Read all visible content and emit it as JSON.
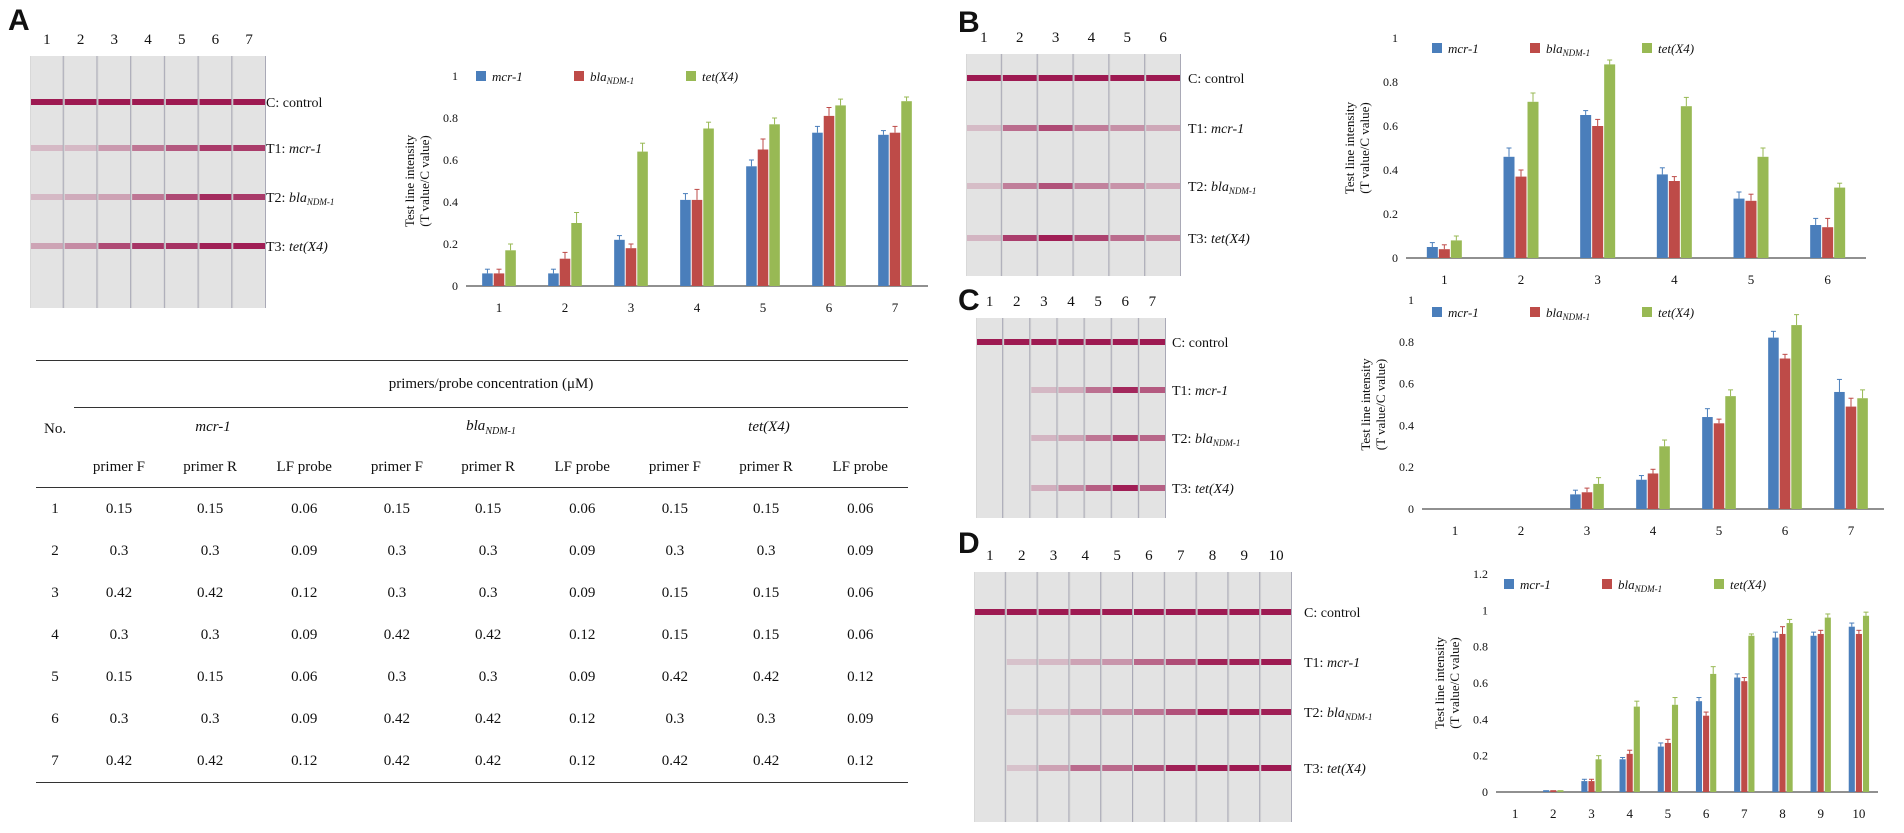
{
  "panels": {
    "A": "A",
    "B": "B",
    "C": "C",
    "D": "D"
  },
  "colors": {
    "mcr": "#4a7ebb",
    "bla": "#be4b48",
    "tet": "#98b954",
    "band": "#9e1a52",
    "strip": "#e3e3e3"
  },
  "legend": {
    "mcr": "mcr-1",
    "bla_base": "bla",
    "bla_sub": "NDM-1",
    "tet": "tet(X4)"
  },
  "ylabel_line1": "Test line intensity",
  "ylabel_line2": "(T value/C value)",
  "strip_labels": {
    "control": "C: control",
    "t1_prefix": "T1: ",
    "t1_gene": "mcr-1",
    "t2_prefix": "T2: ",
    "t2_base": "bla",
    "t2_sub": "NDM-1",
    "t3_prefix": "T3: ",
    "t3_gene": "tet(X4)"
  },
  "strips": {
    "A": {
      "lanes": [
        "1",
        "2",
        "3",
        "4",
        "5",
        "6",
        "7"
      ],
      "control": [
        1,
        1,
        1,
        1,
        1,
        1,
        1
      ],
      "t1": [
        0.06,
        0.06,
        0.22,
        0.41,
        0.57,
        0.73,
        0.72
      ],
      "t2": [
        0.06,
        0.13,
        0.18,
        0.41,
        0.65,
        0.81,
        0.73
      ],
      "t3": [
        0.17,
        0.3,
        0.64,
        0.75,
        0.77,
        0.86,
        0.88
      ]
    },
    "B": {
      "lanes": [
        "1",
        "2",
        "3",
        "4",
        "5",
        "6"
      ],
      "control": [
        1,
        1,
        1,
        1,
        1,
        1
      ],
      "t1": [
        0.05,
        0.46,
        0.65,
        0.38,
        0.27,
        0.15
      ],
      "t2": [
        0.04,
        0.37,
        0.6,
        0.35,
        0.26,
        0.14
      ],
      "t3": [
        0.08,
        0.71,
        0.88,
        0.69,
        0.46,
        0.32
      ]
    },
    "C": {
      "lanes": [
        "1",
        "2",
        "3",
        "4",
        "5",
        "6",
        "7"
      ],
      "control": [
        1,
        1,
        1,
        1,
        1,
        1,
        1
      ],
      "t1": [
        0,
        0,
        0.07,
        0.14,
        0.44,
        0.82,
        0.56
      ],
      "t2": [
        0,
        0,
        0.08,
        0.17,
        0.41,
        0.72,
        0.49
      ],
      "t3": [
        0,
        0,
        0.12,
        0.3,
        0.54,
        0.88,
        0.53
      ]
    },
    "D": {
      "lanes": [
        "1",
        "2",
        "3",
        "4",
        "5",
        "6",
        "7",
        "8",
        "9",
        "10"
      ],
      "control": [
        1,
        1,
        1,
        1,
        1,
        1,
        1,
        1,
        1,
        1
      ],
      "t1": [
        0,
        0.01,
        0.06,
        0.18,
        0.25,
        0.5,
        0.63,
        0.85,
        0.86,
        0.91
      ],
      "t2": [
        0,
        0.01,
        0.06,
        0.21,
        0.27,
        0.42,
        0.61,
        0.87,
        0.87,
        0.87
      ],
      "t3": [
        0,
        0.01,
        0.18,
        0.47,
        0.48,
        0.65,
        0.86,
        0.93,
        0.96,
        0.97
      ]
    }
  },
  "chart_data": [
    {
      "panel": "A",
      "type": "bar",
      "xlabel": "",
      "ylabel": "Test line intensity (T value/C value)",
      "categories": [
        "1",
        "2",
        "3",
        "4",
        "5",
        "6",
        "7"
      ],
      "ylim": [
        0,
        1
      ],
      "yticks": [
        "0",
        "0.2",
        "0.4",
        "0.6",
        "0.8",
        "1"
      ],
      "series": [
        {
          "name": "mcr-1",
          "values": [
            0.06,
            0.06,
            0.22,
            0.41,
            0.57,
            0.73,
            0.72
          ],
          "errors": [
            0.02,
            0.02,
            0.02,
            0.03,
            0.03,
            0.03,
            0.02
          ]
        },
        {
          "name": "blaNDM-1",
          "values": [
            0.06,
            0.13,
            0.18,
            0.41,
            0.65,
            0.81,
            0.73
          ],
          "errors": [
            0.02,
            0.03,
            0.02,
            0.05,
            0.05,
            0.04,
            0.03
          ]
        },
        {
          "name": "tet(X4)",
          "values": [
            0.17,
            0.3,
            0.64,
            0.75,
            0.77,
            0.86,
            0.88
          ],
          "errors": [
            0.03,
            0.05,
            0.04,
            0.03,
            0.03,
            0.03,
            0.02
          ]
        }
      ]
    },
    {
      "panel": "B",
      "type": "bar",
      "xlabel": "",
      "ylabel": "Test line intensity (T value/C value)",
      "categories": [
        "1",
        "2",
        "3",
        "4",
        "5",
        "6"
      ],
      "ylim": [
        0,
        1
      ],
      "yticks": [
        "0",
        "0.2",
        "0.4",
        "0.6",
        "0.8",
        "1"
      ],
      "series": [
        {
          "name": "mcr-1",
          "values": [
            0.05,
            0.46,
            0.65,
            0.38,
            0.27,
            0.15
          ],
          "errors": [
            0.02,
            0.04,
            0.02,
            0.03,
            0.03,
            0.03
          ]
        },
        {
          "name": "blaNDM-1",
          "values": [
            0.04,
            0.37,
            0.6,
            0.35,
            0.26,
            0.14
          ],
          "errors": [
            0.02,
            0.03,
            0.03,
            0.02,
            0.03,
            0.04
          ]
        },
        {
          "name": "tet(X4)",
          "values": [
            0.08,
            0.71,
            0.88,
            0.69,
            0.46,
            0.32
          ],
          "errors": [
            0.02,
            0.04,
            0.02,
            0.04,
            0.04,
            0.02
          ]
        }
      ]
    },
    {
      "panel": "C",
      "type": "bar",
      "xlabel": "",
      "ylabel": "Test line intensity (T value/C value)",
      "categories": [
        "1",
        "2",
        "3",
        "4",
        "5",
        "6",
        "7"
      ],
      "ylim": [
        0,
        1
      ],
      "yticks": [
        "0",
        "0.2",
        "0.4",
        "0.6",
        "0.8",
        "1"
      ],
      "series": [
        {
          "name": "mcr-1",
          "values": [
            0,
            0,
            0.07,
            0.14,
            0.44,
            0.82,
            0.56
          ],
          "errors": [
            0,
            0,
            0.02,
            0.02,
            0.04,
            0.03,
            0.06
          ]
        },
        {
          "name": "blaNDM-1",
          "values": [
            0,
            0,
            0.08,
            0.17,
            0.41,
            0.72,
            0.49
          ],
          "errors": [
            0,
            0,
            0.02,
            0.02,
            0.02,
            0.02,
            0.04
          ]
        },
        {
          "name": "tet(X4)",
          "values": [
            0,
            0,
            0.12,
            0.3,
            0.54,
            0.88,
            0.53
          ],
          "errors": [
            0,
            0,
            0.03,
            0.03,
            0.03,
            0.05,
            0.04
          ]
        }
      ]
    },
    {
      "panel": "D",
      "type": "bar",
      "xlabel": "",
      "ylabel": "Test line intensity (T value/C value)",
      "categories": [
        "1",
        "2",
        "3",
        "4",
        "5",
        "6",
        "7",
        "8",
        "9",
        "10"
      ],
      "ylim": [
        0,
        1.2
      ],
      "yticks": [
        "0",
        "0.2",
        "0.4",
        "0.6",
        "0.8",
        "1",
        "1.2"
      ],
      "series": [
        {
          "name": "mcr-1",
          "values": [
            0,
            0.01,
            0.06,
            0.18,
            0.25,
            0.5,
            0.63,
            0.85,
            0.86,
            0.91
          ],
          "errors": [
            0,
            0,
            0.01,
            0.01,
            0.02,
            0.02,
            0.02,
            0.03,
            0.02,
            0.02
          ]
        },
        {
          "name": "blaNDM-1",
          "values": [
            0,
            0.01,
            0.06,
            0.21,
            0.27,
            0.42,
            0.61,
            0.87,
            0.87,
            0.87
          ],
          "errors": [
            0,
            0,
            0.01,
            0.02,
            0.02,
            0.02,
            0.02,
            0.04,
            0.02,
            0.02
          ]
        },
        {
          "name": "tet(X4)",
          "values": [
            0,
            0.01,
            0.18,
            0.47,
            0.48,
            0.65,
            0.86,
            0.93,
            0.96,
            0.97
          ],
          "errors": [
            0,
            0,
            0.02,
            0.03,
            0.04,
            0.04,
            0.01,
            0.02,
            0.02,
            0.02
          ]
        }
      ]
    }
  ],
  "table": {
    "title": "primers/probe concentration (μM)",
    "no_label": "No.",
    "genes": [
      {
        "base": "mcr-1",
        "sub": ""
      },
      {
        "base": "bla",
        "sub": "NDM-1"
      },
      {
        "base": "tet(X4)",
        "sub": ""
      }
    ],
    "subheaders": [
      "primer F",
      "primer R",
      "LF probe",
      "primer F",
      "primer R",
      "LF probe",
      "primer F",
      "primer R",
      "LF probe"
    ],
    "rows": [
      [
        "1",
        "0.15",
        "0.15",
        "0.06",
        "0.15",
        "0.15",
        "0.06",
        "0.15",
        "0.15",
        "0.06"
      ],
      [
        "2",
        "0.3",
        "0.3",
        "0.09",
        "0.3",
        "0.3",
        "0.09",
        "0.3",
        "0.3",
        "0.09"
      ],
      [
        "3",
        "0.42",
        "0.42",
        "0.12",
        "0.3",
        "0.3",
        "0.09",
        "0.15",
        "0.15",
        "0.06"
      ],
      [
        "4",
        "0.3",
        "0.3",
        "0.09",
        "0.42",
        "0.42",
        "0.12",
        "0.15",
        "0.15",
        "0.06"
      ],
      [
        "5",
        "0.15",
        "0.15",
        "0.06",
        "0.3",
        "0.3",
        "0.09",
        "0.42",
        "0.42",
        "0.12"
      ],
      [
        "6",
        "0.3",
        "0.3",
        "0.09",
        "0.42",
        "0.42",
        "0.12",
        "0.3",
        "0.3",
        "0.09"
      ],
      [
        "7",
        "0.42",
        "0.42",
        "0.12",
        "0.42",
        "0.42",
        "0.12",
        "0.42",
        "0.42",
        "0.12"
      ]
    ]
  }
}
